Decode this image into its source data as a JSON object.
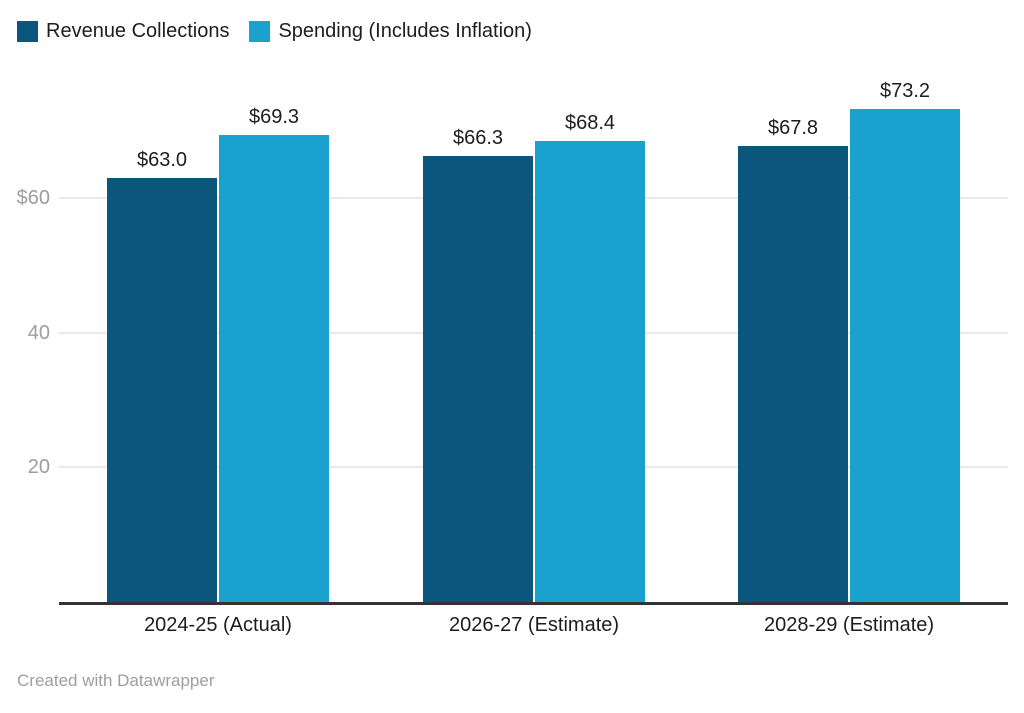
{
  "chart_data": {
    "type": "bar",
    "title": "",
    "categories": [
      "2024-25 (Actual)",
      "2026-27 (Estimate)",
      "2028-29 (Estimate)"
    ],
    "series": [
      {
        "name": "Revenue Collections",
        "color": "#0a567d",
        "values": [
          63.0,
          66.3,
          67.8
        ],
        "value_labels": [
          "$63.0",
          "$66.3",
          "$67.8"
        ]
      },
      {
        "name": "Spending (Includes Inflation)",
        "color": "#1aa1ce",
        "values": [
          69.3,
          68.4,
          73.2
        ],
        "value_labels": [
          "$69.3",
          "$68.4",
          "$73.2"
        ]
      }
    ],
    "y_ticks": [
      {
        "value": 20,
        "label": "20"
      },
      {
        "value": 40,
        "label": "40"
      },
      {
        "value": 60,
        "label": "$60"
      }
    ],
    "ylim": [
      0,
      75
    ],
    "grid": true,
    "legend_position": "top-left"
  },
  "colors": {
    "background": "#ffffff",
    "axis_line": "#333333",
    "gridline": "#e9e9e9",
    "y_tick_label": "#9d9d9d",
    "value_label": "#1d1d1d",
    "footer_text": "#9e9e9e"
  },
  "footer": {
    "attribution": "Created with Datawrapper"
  }
}
